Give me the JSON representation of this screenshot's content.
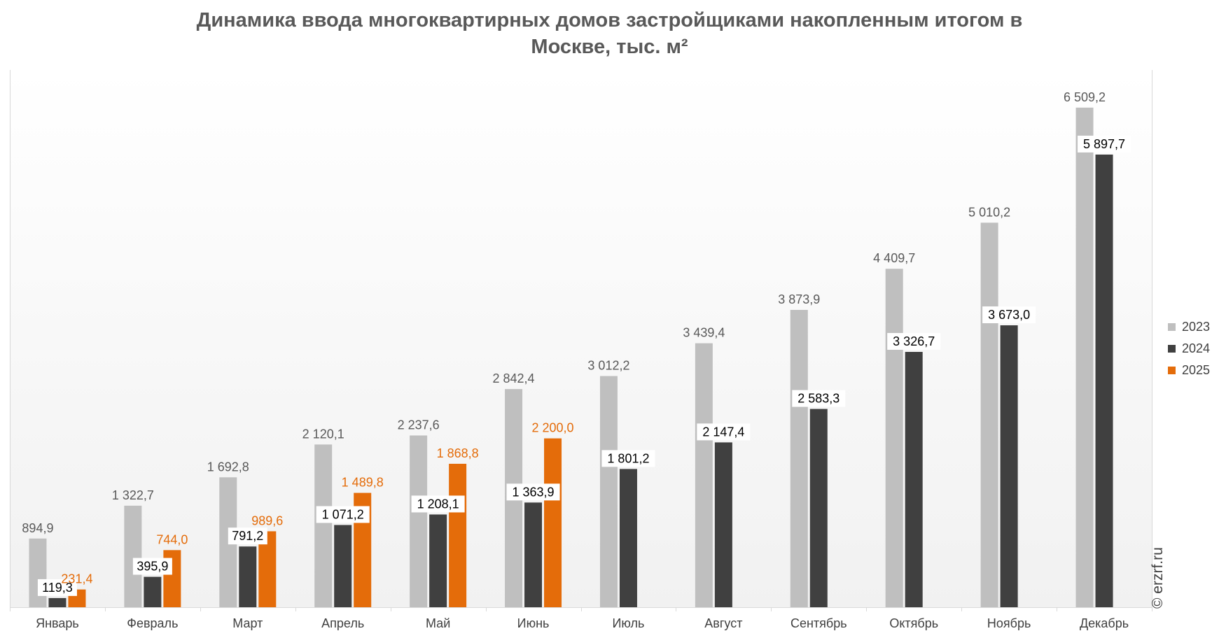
{
  "chart_data": {
    "type": "bar",
    "title_line1": "Динамика ввода многоквартирных домов застройщиками накопленным итогом в",
    "title_line2": "Москве, тыс. м²",
    "categories": [
      "Январь",
      "Февраль",
      "Март",
      "Апрель",
      "Май",
      "Июнь",
      "Июль",
      "Август",
      "Сентябрь",
      "Октябрь",
      "Ноябрь",
      "Декабрь"
    ],
    "series": [
      {
        "name": "2023",
        "color": "#bfbfbf",
        "label_color": "#595959",
        "label_bg": false,
        "values": [
          894.9,
          1322.7,
          1692.8,
          2120.1,
          2237.6,
          2842.4,
          3012.2,
          3439.4,
          3873.9,
          4409.7,
          5010.2,
          6509.2
        ],
        "labels": [
          "894,9",
          "1 322,7",
          "1 692,8",
          "2 120,1",
          "2 237,6",
          "2 842,4",
          "3 012,2",
          "3 439,4",
          "3 873,9",
          "4 409,7",
          "5 010,2",
          "6 509,2"
        ]
      },
      {
        "name": "2024",
        "color": "#404040",
        "label_color": "#000000",
        "label_bg": true,
        "values": [
          119.3,
          395.9,
          791.2,
          1071.2,
          1208.1,
          1363.9,
          1801.2,
          2147.4,
          2583.3,
          3326.7,
          3673.0,
          5897.7
        ],
        "labels": [
          "119,3",
          "395,9",
          "791,2",
          "1 071,2",
          "1 208,1",
          "1 363,9",
          "1 801,2",
          "2 147,4",
          "2 583,3",
          "3 326,7",
          "3 673,0",
          "5 897,7"
        ]
      },
      {
        "name": "2025",
        "color": "#e46c0a",
        "label_color": "#e46c0a",
        "label_bg": false,
        "values": [
          231.4,
          744.0,
          989.6,
          1489.8,
          1868.8,
          2200.0,
          null,
          null,
          null,
          null,
          null,
          null
        ],
        "labels": [
          "231,4",
          "744,0",
          "989,6",
          "1 489,8",
          "1 868,8",
          "2 200,0",
          null,
          null,
          null,
          null,
          null,
          null
        ]
      }
    ],
    "ylim": [
      0,
      7000
    ],
    "grid": false,
    "legend_position": "right"
  },
  "watermark": "© erzrf.ru"
}
